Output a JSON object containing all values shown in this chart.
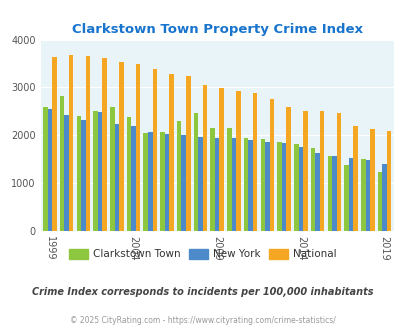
{
  "title": "Clarkstown Town Property Crime Index",
  "title_color": "#1874cd",
  "years": [
    1999,
    2000,
    2001,
    2002,
    2003,
    2004,
    2005,
    2006,
    2007,
    2008,
    2009,
    2010,
    2011,
    2012,
    2013,
    2014,
    2015,
    2016,
    2017,
    2018,
    2019
  ],
  "clarkstown": [
    2600,
    2820,
    2400,
    2510,
    2600,
    2380,
    2050,
    2060,
    2290,
    2460,
    2160,
    2160,
    1940,
    1930,
    1870,
    1820,
    1730,
    1560,
    1370,
    1500,
    1230
  ],
  "new_york": [
    2560,
    2420,
    2310,
    2490,
    2230,
    2200,
    2060,
    2020,
    2000,
    1960,
    1940,
    1950,
    1900,
    1870,
    1830,
    1750,
    1640,
    1570,
    1520,
    1490,
    1390
  ],
  "national": [
    3640,
    3680,
    3660,
    3610,
    3530,
    3480,
    3380,
    3290,
    3240,
    3060,
    2980,
    2930,
    2880,
    2760,
    2600,
    2510,
    2500,
    2460,
    2200,
    2130,
    2100
  ],
  "clarkstown_color": "#8dc63f",
  "new_york_color": "#4d8ac9",
  "national_color": "#f5a623",
  "bg_color": "#e8f4f8",
  "fig_bg": "#ffffff",
  "ylim": [
    0,
    4000
  ],
  "yticks": [
    0,
    1000,
    2000,
    3000,
    4000
  ],
  "xtick_years": [
    1999,
    2004,
    2009,
    2014,
    2019
  ],
  "subtitle": "Crime Index corresponds to incidents per 100,000 inhabitants",
  "subtitle_color": "#444444",
  "copyright": "© 2025 CityRating.com - https://www.cityrating.com/crime-statistics/",
  "copyright_color": "#999999",
  "legend_labels": [
    "Clarkstown Town",
    "New York",
    "National"
  ],
  "bar_width": 0.27
}
